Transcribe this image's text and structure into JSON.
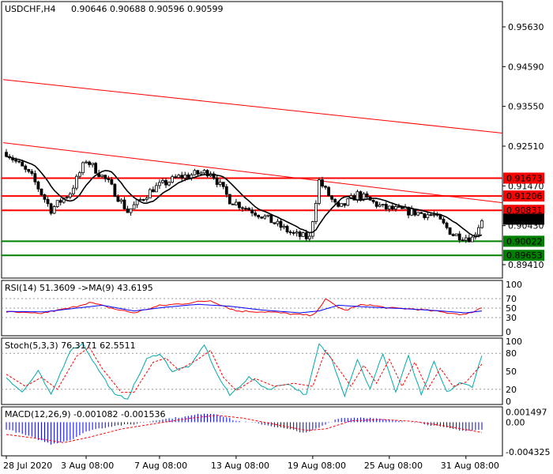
{
  "header": {
    "symbol": "USDCHF,H4",
    "ohlc": "0.90646 0.90688 0.90596 0.90599"
  },
  "colors": {
    "bull": "#ffffff",
    "bear": "#000000",
    "resistance": "#ff0000",
    "support": "#008000",
    "trend": "#ff0000",
    "ma": "#000000",
    "rsi": "#ff0000",
    "rsi_ma": "#0000ff",
    "stoch_main": "#00aaaa",
    "stoch_signal": "#ff0000",
    "macd_hist": "#0000ff",
    "macd_signal": "#ff0000"
  },
  "chart_data": [
    {
      "type": "candlestick",
      "x_tick_labels": [
        "28 Jul 2020",
        "3 Aug 08:00",
        "7 Aug 08:00",
        "13 Aug 08:00",
        "19 Aug 08:00",
        "25 Aug 08:00",
        "31 Aug 08:00"
      ],
      "x_tick_index": [
        0,
        25,
        48,
        72,
        96,
        120,
        144
      ],
      "bar_count": 150,
      "ylim": [
        0.891,
        0.9625
      ],
      "y_tick_labels": [
        "0.95630",
        "0.94590",
        "0.93550",
        "0.92510",
        "0.91470",
        "0.90430",
        "0.89410"
      ],
      "y_ticks": [
        0.9563,
        0.9459,
        0.9355,
        0.9251,
        0.9147,
        0.9043,
        0.8941
      ],
      "last_price": 0.90599,
      "last_price_label": "0.90599",
      "key_anchors": [
        [
          0,
          0.9235
        ],
        [
          8,
          0.917
        ],
        [
          14,
          0.9085
        ],
        [
          20,
          0.913
        ],
        [
          25,
          0.9215
        ],
        [
          32,
          0.9155
        ],
        [
          38,
          0.908
        ],
        [
          46,
          0.914
        ],
        [
          54,
          0.917
        ],
        [
          64,
          0.9185
        ],
        [
          70,
          0.911
        ],
        [
          80,
          0.907
        ],
        [
          90,
          0.902
        ],
        [
          95,
          0.901
        ],
        [
          98,
          0.916
        ],
        [
          104,
          0.9085
        ],
        [
          110,
          0.9125
        ],
        [
          118,
          0.909
        ],
        [
          126,
          0.908
        ],
        [
          134,
          0.907
        ],
        [
          140,
          0.902
        ],
        [
          146,
          0.901
        ],
        [
          149,
          0.906
        ]
      ],
      "horizontal_levels": [
        {
          "value": 0.91673,
          "label": "0.91673",
          "role": "resistance"
        },
        {
          "value": 0.91206,
          "label": "0.91206",
          "role": "resistance"
        },
        {
          "value": 0.90831,
          "label": "0.90831",
          "role": "resistance"
        },
        {
          "value": 0.90022,
          "label": "0.90022",
          "role": "support"
        },
        {
          "value": 0.89653,
          "label": "0.89653",
          "role": "support"
        }
      ],
      "trend_lines": [
        {
          "from": [
            0,
            0.9425
          ],
          "to": [
            150,
            0.9285
          ]
        },
        {
          "from": [
            0,
            0.926
          ],
          "to": [
            150,
            0.9103
          ]
        }
      ],
      "moving_average": true
    },
    {
      "type": "line",
      "name": "RSI",
      "label": "RSI(14) 51.3609  ->MA(9) 43.6195",
      "ylim": [
        0,
        100
      ],
      "y_tick_labels": [
        "100",
        "70",
        "50",
        "30",
        "0"
      ],
      "y_ticks": [
        100,
        70,
        50,
        30,
        0
      ],
      "levels": [
        70,
        50,
        30
      ],
      "series": [
        {
          "name": "RSI(14)",
          "anchors": [
            [
              0,
              42
            ],
            [
              10,
              38
            ],
            [
              20,
              50
            ],
            [
              26,
              62
            ],
            [
              34,
              48
            ],
            [
              40,
              40
            ],
            [
              48,
              55
            ],
            [
              56,
              60
            ],
            [
              64,
              66
            ],
            [
              72,
              44
            ],
            [
              82,
              42
            ],
            [
              92,
              36
            ],
            [
              96,
              34
            ],
            [
              100,
              68
            ],
            [
              106,
              45
            ],
            [
              112,
              58
            ],
            [
              120,
              50
            ],
            [
              128,
              48
            ],
            [
              136,
              42
            ],
            [
              144,
              36
            ],
            [
              149,
              51
            ]
          ]
        },
        {
          "name": "MA(9)",
          "anchors": [
            [
              0,
              43
            ],
            [
              12,
              42
            ],
            [
              22,
              50
            ],
            [
              30,
              56
            ],
            [
              40,
              44
            ],
            [
              50,
              52
            ],
            [
              60,
              58
            ],
            [
              70,
              54
            ],
            [
              80,
              46
            ],
            [
              92,
              40
            ],
            [
              98,
              44
            ],
            [
              104,
              56
            ],
            [
              114,
              52
            ],
            [
              124,
              49
            ],
            [
              134,
              45
            ],
            [
              144,
              40
            ],
            [
              149,
              44
            ]
          ]
        }
      ]
    },
    {
      "type": "line",
      "name": "Stochastic",
      "label": "Stoch(5,3,3) 76.3171 62.5511",
      "ylim": [
        0,
        100
      ],
      "y_tick_labels": [
        "100",
        "80",
        "50",
        "20",
        "0"
      ],
      "y_ticks": [
        100,
        80,
        50,
        20,
        0
      ],
      "levels": [
        80,
        20
      ],
      "series": [
        {
          "name": "%K",
          "anchors": [
            [
              0,
              40
            ],
            [
              5,
              15
            ],
            [
              10,
              50
            ],
            [
              14,
              10
            ],
            [
              20,
              85
            ],
            [
              24,
              96
            ],
            [
              28,
              60
            ],
            [
              34,
              10
            ],
            [
              38,
              5
            ],
            [
              44,
              70
            ],
            [
              48,
              80
            ],
            [
              52,
              50
            ],
            [
              58,
              60
            ],
            [
              62,
              95
            ],
            [
              66,
              45
            ],
            [
              70,
              10
            ],
            [
              76,
              40
            ],
            [
              82,
              20
            ],
            [
              88,
              30
            ],
            [
              94,
              10
            ],
            [
              98,
              95
            ],
            [
              102,
              70
            ],
            [
              106,
              10
            ],
            [
              110,
              70
            ],
            [
              114,
              20
            ],
            [
              118,
              80
            ],
            [
              122,
              15
            ],
            [
              126,
              75
            ],
            [
              130,
              10
            ],
            [
              134,
              65
            ],
            [
              138,
              15
            ],
            [
              142,
              30
            ],
            [
              146,
              25
            ],
            [
              149,
              76
            ]
          ]
        },
        {
          "name": "%D",
          "anchors": [
            [
              0,
              45
            ],
            [
              6,
              25
            ],
            [
              11,
              40
            ],
            [
              16,
              20
            ],
            [
              22,
              75
            ],
            [
              26,
              90
            ],
            [
              30,
              55
            ],
            [
              36,
              15
            ],
            [
              40,
              15
            ],
            [
              46,
              65
            ],
            [
              50,
              72
            ],
            [
              54,
              52
            ],
            [
              60,
              70
            ],
            [
              64,
              85
            ],
            [
              68,
              40
            ],
            [
              72,
              18
            ],
            [
              78,
              38
            ],
            [
              84,
              25
            ],
            [
              90,
              30
            ],
            [
              96,
              25
            ],
            [
              100,
              85
            ],
            [
              104,
              55
            ],
            [
              108,
              25
            ],
            [
              112,
              60
            ],
            [
              116,
              30
            ],
            [
              120,
              70
            ],
            [
              124,
              25
            ],
            [
              128,
              65
            ],
            [
              132,
              20
            ],
            [
              136,
              55
            ],
            [
              140,
              25
            ],
            [
              144,
              32
            ],
            [
              149,
              62
            ]
          ]
        }
      ]
    },
    {
      "type": "bar",
      "name": "MACD",
      "label": "MACD(12,26,9) -0.001082 -0.001536",
      "ylim": [
        -0.0047,
        0.0019
      ],
      "y_tick_labels": [
        "0.001497",
        "0.00",
        "-0.004325"
      ],
      "y_ticks": [
        0.001497,
        0.0,
        -0.004325
      ],
      "series": [
        {
          "name": "Histogram",
          "anchors": [
            [
              0,
              -0.001
            ],
            [
              8,
              -0.0022
            ],
            [
              14,
              -0.0032
            ],
            [
              20,
              -0.0026
            ],
            [
              26,
              -0.0012
            ],
            [
              34,
              -0.0005
            ],
            [
              40,
              -0.0003
            ],
            [
              48,
              0.0004
            ],
            [
              56,
              0.0008
            ],
            [
              62,
              0.0013
            ],
            [
              66,
              0.0012
            ],
            [
              72,
              0.0002
            ],
            [
              80,
              -0.0003
            ],
            [
              88,
              -0.001
            ],
            [
              94,
              -0.0016
            ],
            [
              98,
              -0.0008
            ],
            [
              104,
              0.0006
            ],
            [
              112,
              0.0007
            ],
            [
              120,
              0.0003
            ],
            [
              128,
              0.0
            ],
            [
              136,
              -0.0007
            ],
            [
              144,
              -0.0013
            ],
            [
              149,
              -0.0011
            ]
          ]
        },
        {
          "name": "Signal",
          "anchors": [
            [
              0,
              -0.0018
            ],
            [
              10,
              -0.0024
            ],
            [
              18,
              -0.003
            ],
            [
              26,
              -0.0022
            ],
            [
              36,
              -0.001
            ],
            [
              48,
              -0.0001
            ],
            [
              58,
              0.0006
            ],
            [
              66,
              0.001
            ],
            [
              74,
              0.0006
            ],
            [
              84,
              -0.0003
            ],
            [
              94,
              -0.0012
            ],
            [
              100,
              -0.001
            ],
            [
              108,
              0.0002
            ],
            [
              118,
              0.0004
            ],
            [
              128,
              0.0001
            ],
            [
              138,
              -0.0006
            ],
            [
              149,
              -0.0015
            ]
          ]
        }
      ]
    }
  ]
}
